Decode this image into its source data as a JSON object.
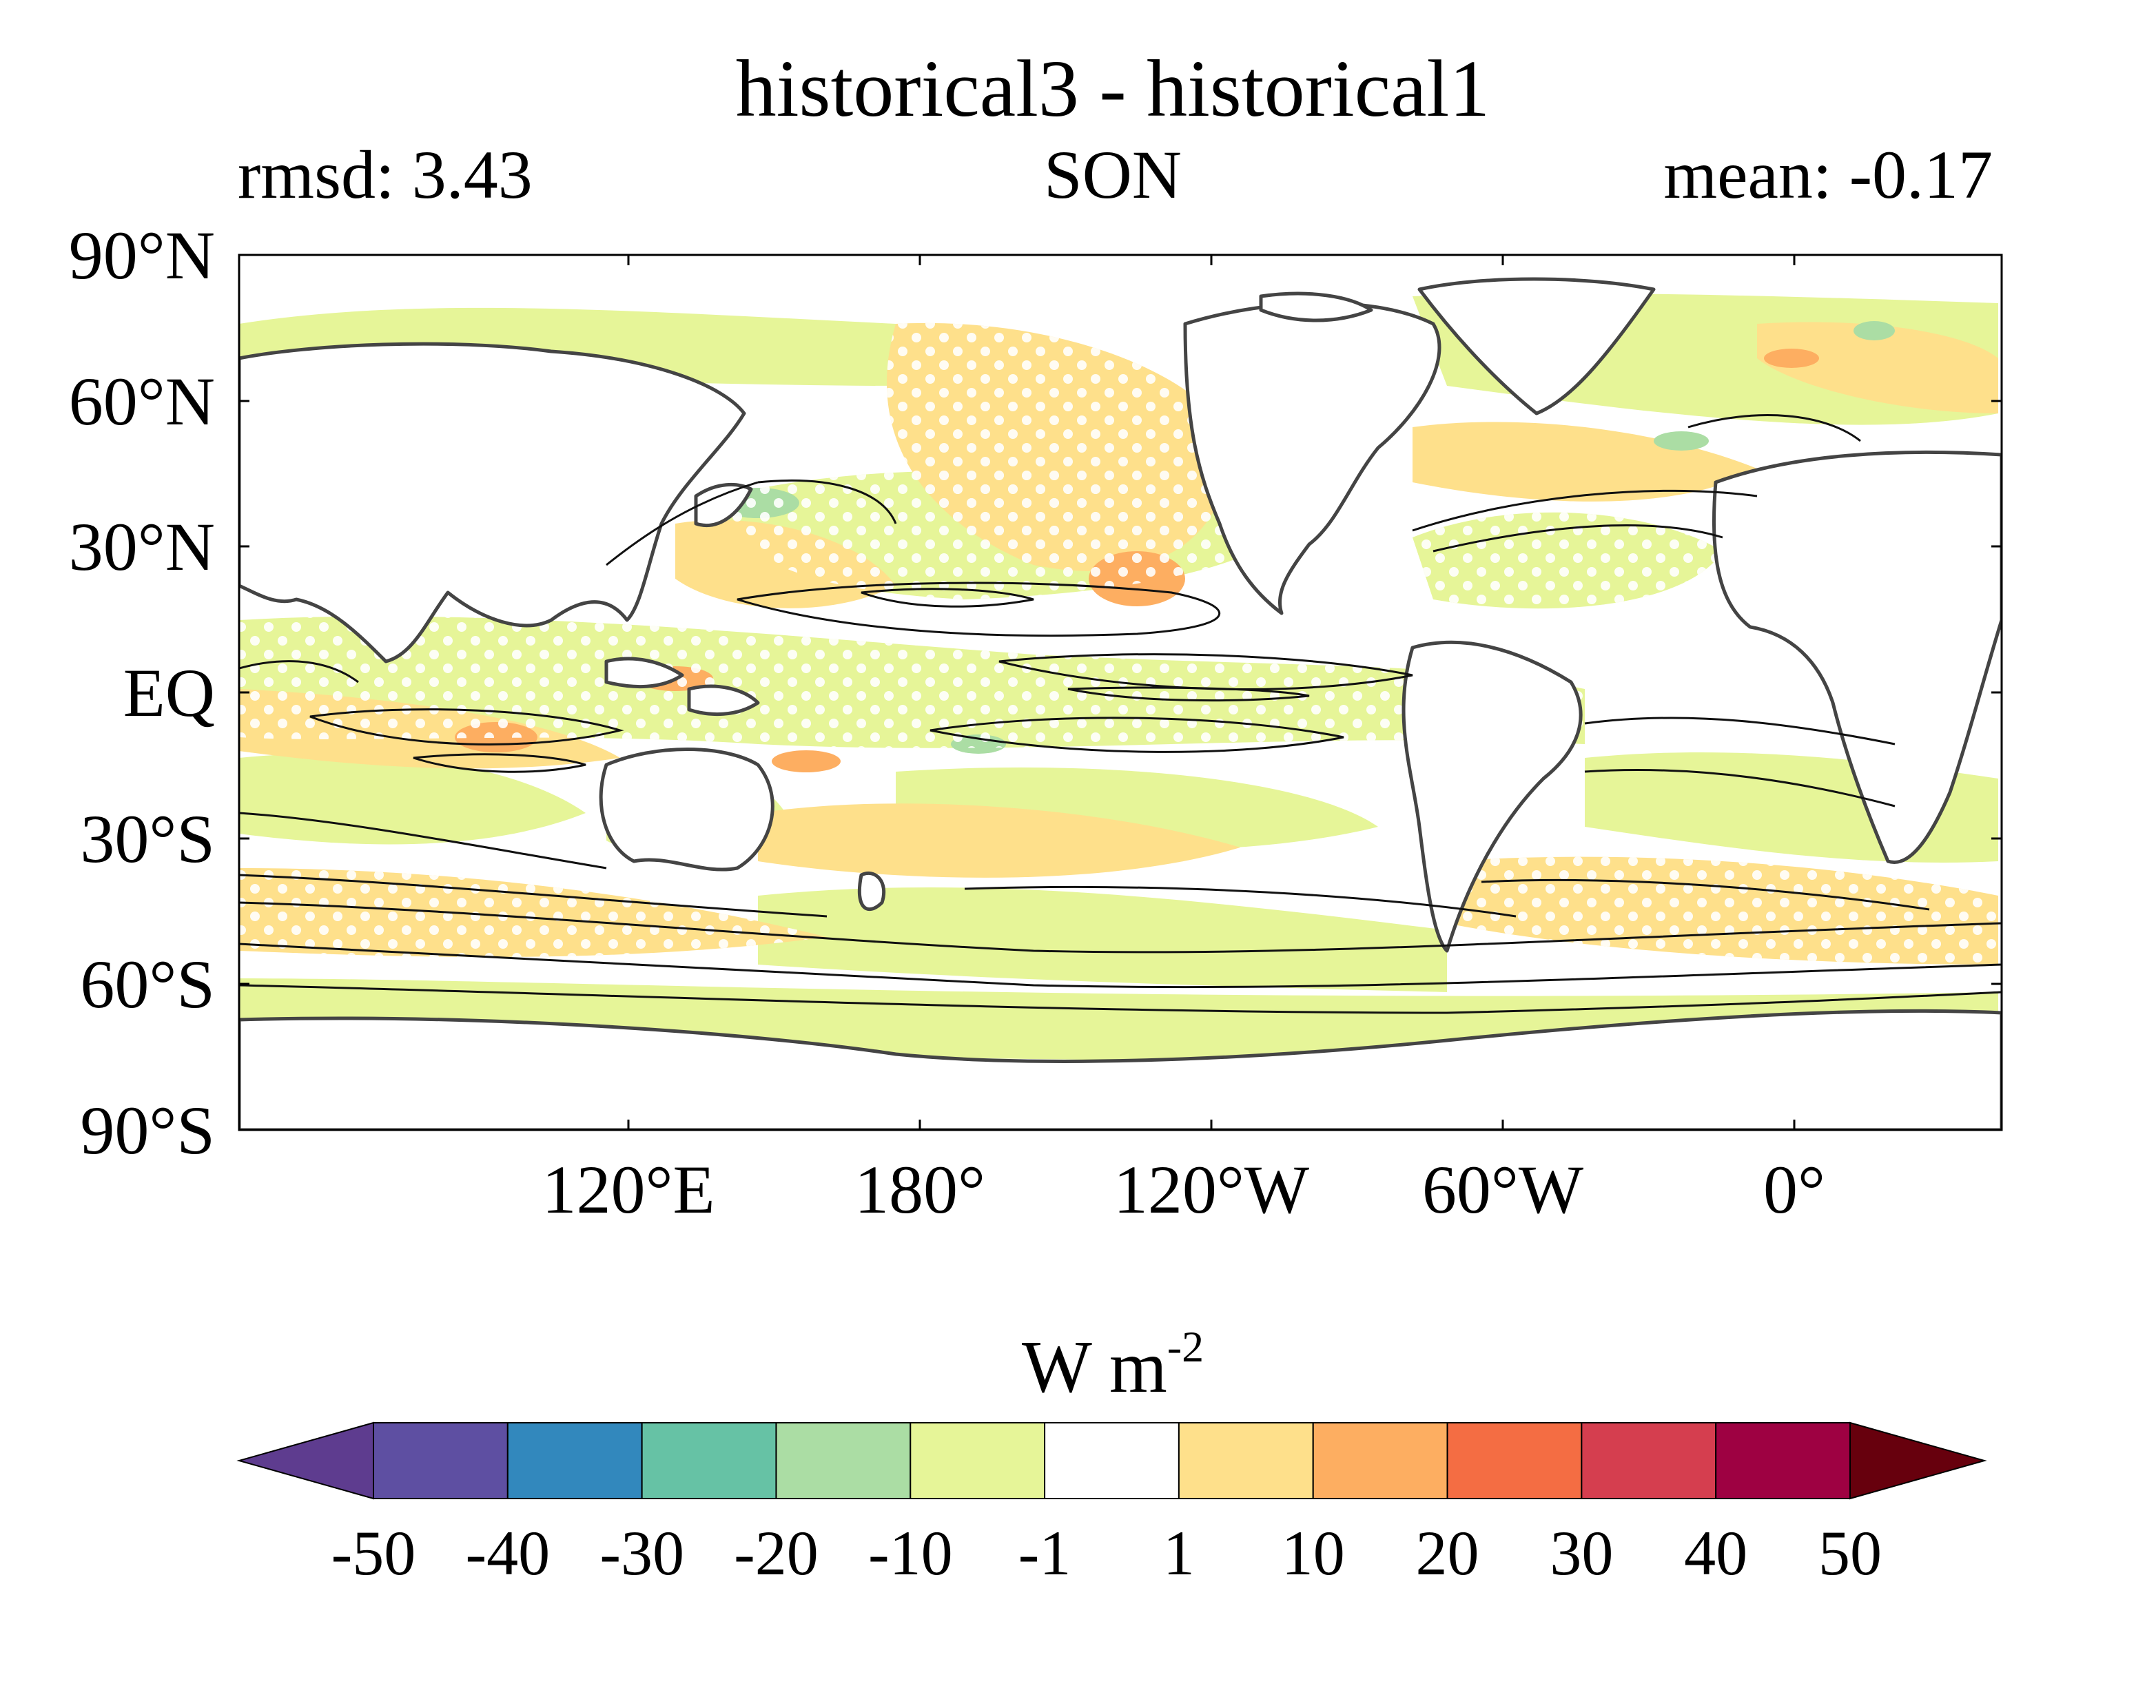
{
  "title": "historical3 - historical1",
  "left_label": "rmsd: 3.43",
  "center_label": "SON",
  "right_label": "mean: -0.17",
  "axes": {
    "lat_ticks": [
      "90°N",
      "60°N",
      "30°N",
      "EQ",
      "30°S",
      "60°S",
      "90°S"
    ],
    "lon_ticks": [
      "120°E",
      "180°",
      "120°W",
      "60°W",
      "0°"
    ]
  },
  "colorbar": {
    "units_base": "W m",
    "units_exp": "-2",
    "levels": [
      "-50",
      "-40",
      "-30",
      "-20",
      "-10",
      "-1",
      "1",
      "10",
      "20",
      "30",
      "40",
      "50"
    ],
    "colors": [
      "#5e3c8f",
      "#5e4fa2",
      "#3288bd",
      "#66c2a5",
      "#abdda4",
      "#e6f598",
      "#ffffff",
      "#fee08b",
      "#fdae61",
      "#f46d43",
      "#d53e4f",
      "#9e0142",
      "#67000d"
    ]
  }
}
